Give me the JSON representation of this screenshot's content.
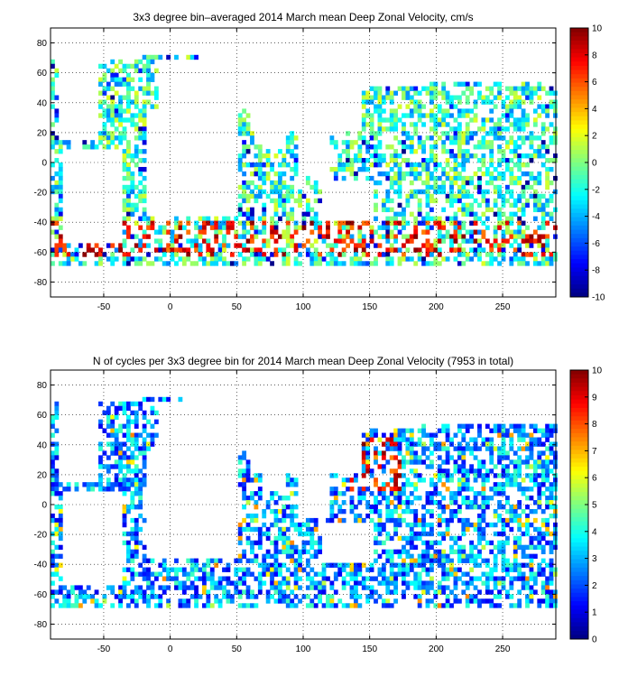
{
  "chart_data": [
    {
      "type": "heatmap",
      "title": "3x3 degree bin–averaged 2014 March mean Deep Zonal Velocity, cm/s",
      "xlim": [
        -90,
        290
      ],
      "ylim": [
        -90,
        90
      ],
      "xticks": [
        "-50",
        "0",
        "50",
        "100",
        "150",
        "200",
        "250"
      ],
      "yticks": [
        "80",
        "60",
        "40",
        "20",
        "0",
        "-20",
        "-40",
        "-60",
        "-80"
      ],
      "grid": true,
      "colorbar": {
        "min": -10,
        "max": 10,
        "ticks": [
          "10",
          "8",
          "6",
          "4",
          "2",
          "0",
          "-2",
          "-4",
          "-6",
          "-8",
          "-10"
        ],
        "colormap": "jet",
        "placement": "right"
      },
      "bin_size_deg": 3,
      "value_summary": "velocities clustered near 0 cm/s over most ocean bins; strong positive (eastward, 6-10 cm/s) band in the Southern Ocean around 40-60S"
    },
    {
      "type": "heatmap",
      "title": "N of cycles per 3x3 degree bin for 2014 March mean Deep Zonal Velocity (7953 in total)",
      "xlim": [
        -90,
        290
      ],
      "ylim": [
        -90,
        90
      ],
      "xticks": [
        "-50",
        "0",
        "50",
        "100",
        "150",
        "200",
        "250"
      ],
      "yticks": [
        "80",
        "60",
        "40",
        "20",
        "0",
        "-20",
        "-40",
        "-60",
        "-80"
      ],
      "grid": true,
      "colorbar": {
        "min": 0,
        "max": 10,
        "ticks": [
          "10",
          "9",
          "8",
          "7",
          "6",
          "5",
          "4",
          "3",
          "2",
          "1",
          "0"
        ],
        "colormap": "jet",
        "placement": "right"
      },
      "bin_size_deg": 3,
      "total_cycles": 7953,
      "value_summary": "mostly 1-4 cycles per bin; highest counts (8-10) in the western North Pacific near Japan"
    }
  ]
}
